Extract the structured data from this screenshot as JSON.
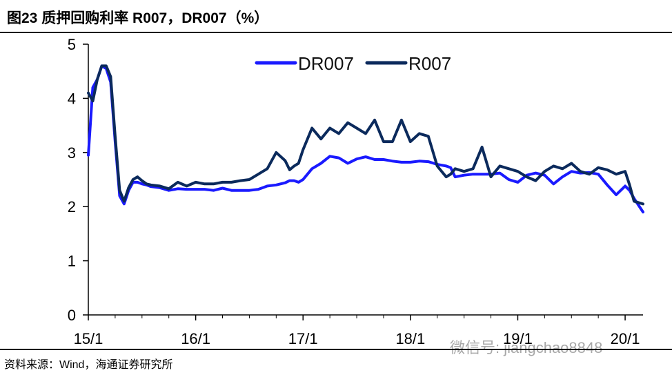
{
  "header": {
    "title": "图23 质押回购利率 R007，DR007（%）"
  },
  "footer": {
    "source": "资料来源：Wind，海通证券研究所"
  },
  "watermark": {
    "text": "微信号: jiangchao8848"
  },
  "colors": {
    "dr007": "#1a1aff",
    "r007": "#0b2a5c",
    "axis": "#000000"
  },
  "chart_data": {
    "type": "line",
    "title": "图23 质押回购利率 R007，DR007（%）",
    "xlabel": "",
    "ylabel": "",
    "ylim": [
      0,
      5
    ],
    "yticks": [
      "0",
      "1",
      "2",
      "3",
      "4",
      "5"
    ],
    "xtick_labels": [
      "15/1",
      "16/1",
      "17/1",
      "18/1",
      "19/1",
      "20/1"
    ],
    "xtick_positions": [
      0,
      12,
      24,
      36,
      48,
      60
    ],
    "legend": {
      "placement": "top-center",
      "entries": [
        "DR007",
        "R007"
      ]
    },
    "x": [
      0,
      0.5,
      1,
      1.5,
      2,
      2.5,
      3,
      3.5,
      4,
      4.5,
      5,
      5.5,
      6,
      6.5,
      7,
      8,
      9,
      10,
      11,
      12,
      13,
      14,
      15,
      16,
      17,
      18,
      19,
      20,
      21,
      22,
      22.5,
      23,
      23.5,
      24,
      25,
      26,
      27,
      28,
      29,
      30,
      31,
      32,
      33,
      34,
      35,
      36,
      37,
      38,
      39,
      40,
      40.5,
      41,
      42,
      43,
      44,
      45,
      46,
      47,
      48,
      49,
      50,
      51,
      52,
      53,
      54,
      55,
      56,
      57,
      58,
      59,
      60,
      60.5,
      61,
      62
    ],
    "series": [
      {
        "name": "DR007",
        "values": [
          2.95,
          4.2,
          4.35,
          4.6,
          4.55,
          4.3,
          3.2,
          2.2,
          2.05,
          2.3,
          2.45,
          2.45,
          2.42,
          2.4,
          2.37,
          2.35,
          2.3,
          2.33,
          2.32,
          2.32,
          2.32,
          2.3,
          2.34,
          2.3,
          2.3,
          2.3,
          2.32,
          2.38,
          2.4,
          2.44,
          2.48,
          2.48,
          2.45,
          2.5,
          2.7,
          2.8,
          2.93,
          2.9,
          2.8,
          2.88,
          2.92,
          2.87,
          2.87,
          2.84,
          2.82,
          2.82,
          2.84,
          2.83,
          2.78,
          2.75,
          2.72,
          2.55,
          2.58,
          2.6,
          2.6,
          2.6,
          2.62,
          2.5,
          2.45,
          2.58,
          2.62,
          2.58,
          2.42,
          2.55,
          2.65,
          2.62,
          2.63,
          2.6,
          2.4,
          2.22,
          2.38,
          2.3,
          2.15,
          1.9
        ]
      },
      {
        "name": "R007",
        "values": [
          4.1,
          3.95,
          4.35,
          4.6,
          4.6,
          4.4,
          3.3,
          2.3,
          2.1,
          2.35,
          2.5,
          2.55,
          2.48,
          2.42,
          2.4,
          2.38,
          2.33,
          2.45,
          2.38,
          2.45,
          2.42,
          2.42,
          2.45,
          2.45,
          2.48,
          2.5,
          2.6,
          2.7,
          3.0,
          2.85,
          2.68,
          2.75,
          2.8,
          3.05,
          3.45,
          3.25,
          3.45,
          3.35,
          3.55,
          3.45,
          3.35,
          3.6,
          3.2,
          3.2,
          3.6,
          3.2,
          3.35,
          3.3,
          2.75,
          2.55,
          2.6,
          2.7,
          2.65,
          2.7,
          3.1,
          2.55,
          2.75,
          2.7,
          2.65,
          2.55,
          2.48,
          2.65,
          2.75,
          2.7,
          2.8,
          2.65,
          2.6,
          2.72,
          2.68,
          2.6,
          2.65,
          2.4,
          2.1,
          2.05
        ]
      }
    ]
  }
}
